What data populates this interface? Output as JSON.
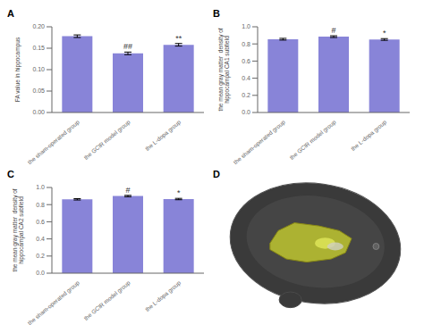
{
  "chart_data": [
    {
      "type": "bar",
      "title": "A",
      "y_label": "FA value in hippocampus",
      "color": "#8884d8",
      "categories": [
        "the sham-operated group",
        "the GCIR model group",
        "the L-dopa group"
      ],
      "values": [
        0.178,
        0.138,
        0.158
      ],
      "errors": [
        0.003,
        0.003,
        0.003
      ],
      "annotations": [
        null,
        "##",
        "**"
      ],
      "ylim": [
        0.0,
        0.2
      ],
      "yticks": [
        {
          "value": 0.0,
          "label": "0.00"
        },
        0.05,
        {
          "value": 0.1,
          "label": "0.10"
        },
        0.15,
        {
          "value": 0.2,
          "label": "0.20"
        }
      ]
    },
    {
      "type": "bar",
      "title": "B",
      "y_label": "the mean gray matter  density of\nhippocampal CA1 subfield",
      "color": "#8884d8",
      "categories": [
        "the sham-operated group",
        "the GCIR model group",
        "the L-dopa group"
      ],
      "values": [
        0.855,
        0.885,
        0.852
      ],
      "errors": [
        0.01,
        0.01,
        0.01
      ],
      "annotations": [
        null,
        "#",
        "*"
      ],
      "ylim": [
        0.0,
        1.0
      ],
      "yticks": [
        {
          "value": 0.0,
          "label": "0.0"
        },
        0.2,
        0.4,
        0.6,
        0.8,
        {
          "value": 1.0,
          "label": "1.0"
        }
      ]
    },
    {
      "type": "bar",
      "title": "C",
      "y_label": "the mean gray matter  density of\nhippocampal CA2 subfield",
      "color": "#8884d8",
      "categories": [
        "the sham-operated group",
        "the GCIR model group",
        "the L-dopa group"
      ],
      "values": [
        0.862,
        0.9,
        0.865
      ],
      "errors": [
        0.008,
        0.008,
        0.008
      ],
      "annotations": [
        null,
        "#",
        "*"
      ],
      "ylim": [
        0.0,
        1.0
      ],
      "yticks": [
        {
          "value": 0.0,
          "label": "0.0"
        },
        0.2,
        0.4,
        0.6,
        0.8,
        {
          "value": 1.0,
          "label": "1.0"
        }
      ]
    },
    {
      "type": "image",
      "title": "D"
    }
  ]
}
